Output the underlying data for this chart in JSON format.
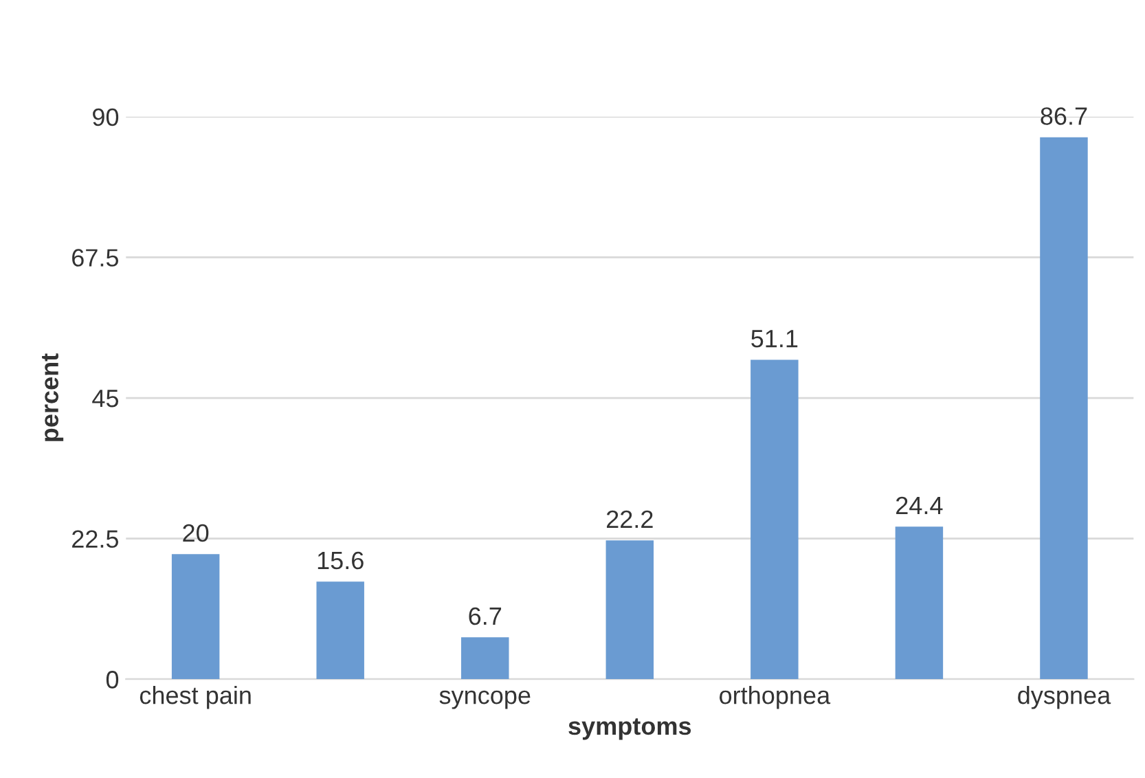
{
  "chart_data": {
    "type": "bar",
    "xlabel": "symptoms",
    "ylabel": "percent",
    "categories": [
      "chest pain",
      null,
      "syncope",
      null,
      "orthopnea",
      null,
      "dyspnea"
    ],
    "values": [
      20,
      15.6,
      6.7,
      22.2,
      51.1,
      24.4,
      86.7
    ],
    "color": "#6a9bd2",
    "ylim": [
      0,
      90
    ],
    "yticks": [
      0,
      22.5,
      45,
      67.5,
      90
    ],
    "grid": "y",
    "data_labels": true
  }
}
